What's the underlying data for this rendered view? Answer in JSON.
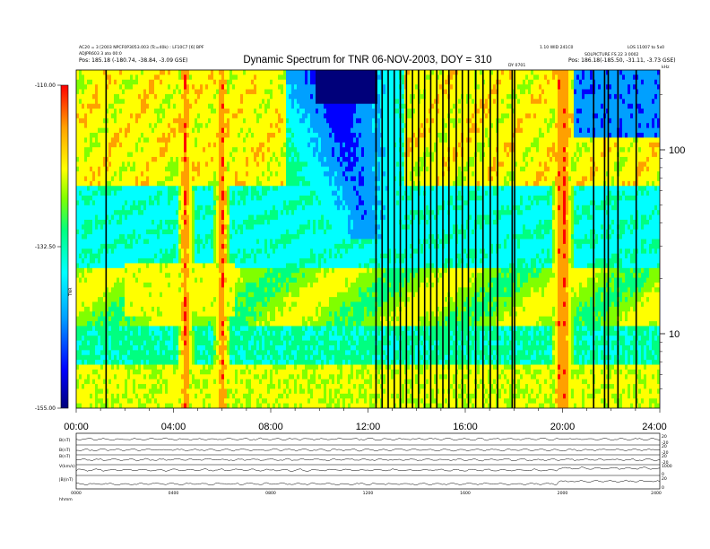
{
  "colors": {
    "scale": [
      "#00007a",
      "#0000ff",
      "#00a0ff",
      "#00ffff",
      "#00ff80",
      "#80ff00",
      "#ffff00",
      "#ffa000",
      "#ff0000"
    ],
    "axis": "#000000",
    "background": "#ffffff"
  },
  "header": {
    "left_line1": "AC20 = 3 [2003 NPCF0P3053.003 (Tc=40k) : LF10C7 [6] BPF",
    "left_line2": "ADJPR603 3 ato 00:0",
    "left_pos": "Pos: 185.18 (-180.74, -38.84, -3.09 GSE)",
    "right_line1": "1.10 WID 241C0",
    "right_line2": "LOS 11007 to 5x0",
    "right_line3": "SOLPICTURE FS 22 3 0002",
    "right_pos": "Pos: 186.18(-185.50, -31.11, -3.73 GSE)",
    "mid_label": "DY 0701"
  },
  "spectrum": {
    "title": "Dynamic Spectrum for TNR 06-NOV-2003, DOY = 310",
    "colorbar_ticks": [
      "-110.00",
      "-132.50",
      "-155.00"
    ],
    "colorbar_label": "TNR",
    "right_ticks": [
      "100",
      "10"
    ],
    "right_unit": "kHz",
    "x_ticks": [
      "00:00",
      "04:00",
      "08:00",
      "12:00",
      "16:00",
      "20:00",
      "24:00"
    ]
  },
  "chart_data": [
    {
      "type": "heatmap",
      "title": "Dynamic Spectrum for TNR 06-NOV-2003, DOY = 310",
      "x_range_hours": [
        0,
        24
      ],
      "y_unit": "kHz",
      "y_ticks": [
        10,
        100
      ],
      "y_log": true,
      "color_range": [
        -155.0,
        -110.0
      ],
      "colorbar_ticks": [
        -110.0,
        -132.5,
        -155.0
      ],
      "data_gaps_hours": [
        1.2,
        12.3,
        12.55,
        12.8,
        13.05,
        13.3,
        13.55,
        13.8,
        14.05,
        14.3,
        14.55,
        14.8,
        15.05,
        15.3,
        15.6,
        15.85,
        16.1,
        16.4,
        16.7,
        17.0,
        17.3,
        17.9,
        18.0,
        21.25,
        21.7,
        21.85,
        22.25,
        23.0
      ],
      "bursts_hours": [
        4.5,
        6.0,
        19.9,
        20.1
      ]
    },
    {
      "type": "line",
      "x_range_hours": [
        0,
        24
      ],
      "x_ticks": [
        "0000",
        "0400",
        "0800",
        "1200",
        "1600",
        "2000",
        "2400"
      ],
      "panels": [
        {
          "label": "B(nT)",
          "right_ticks": [
            "20",
            "-20"
          ]
        },
        {
          "label": "B(nT)",
          "right_ticks": [
            "20",
            "-20"
          ]
        },
        {
          "label": "B(nT)",
          "right_ticks": [
            "20",
            "-20"
          ]
        },
        {
          "label": "V(km/s)",
          "right_ticks": [
            "1000",
            "0"
          ]
        },
        {
          "label": "|B|(nT)",
          "right_ticks": [
            "20",
            "0"
          ]
        }
      ]
    }
  ],
  "footer": {
    "time_label": "hhmm",
    "x_ticks": [
      "0000",
      "0400",
      "0800",
      "1200",
      "1600",
      "2000",
      "2400"
    ]
  }
}
